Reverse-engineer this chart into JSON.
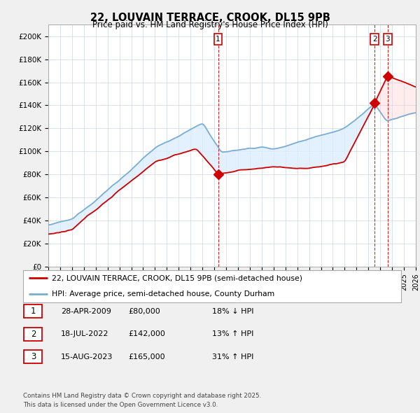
{
  "title": "22, LOUVAIN TERRACE, CROOK, DL15 9PB",
  "subtitle": "Price paid vs. HM Land Registry's House Price Index (HPI)",
  "price_color": "#cc0000",
  "hpi_color": "#7aadcf",
  "fill_color": "#ddeeff",
  "background_color": "#f0f0f0",
  "plot_bg_color": "#ffffff",
  "ylim": [
    0,
    210000
  ],
  "yticks": [
    0,
    20000,
    40000,
    60000,
    80000,
    100000,
    120000,
    140000,
    160000,
    180000,
    200000
  ],
  "ytick_labels": [
    "£0",
    "£20K",
    "£40K",
    "£60K",
    "£80K",
    "£100K",
    "£120K",
    "£140K",
    "£160K",
    "£180K",
    "£200K"
  ],
  "legend_label_price": "22, LOUVAIN TERRACE, CROOK, DL15 9PB (semi-detached house)",
  "legend_label_hpi": "HPI: Average price, semi-detached house, County Durham",
  "sale_1_date": 2009.32,
  "sale_1_price": 80000,
  "sale_2_date": 2022.54,
  "sale_2_price": 142000,
  "sale_3_date": 2023.62,
  "sale_3_price": 165000,
  "table_data": [
    [
      "1",
      "28-APR-2009",
      "£80,000",
      "18% ↓ HPI"
    ],
    [
      "2",
      "18-JUL-2022",
      "£142,000",
      "13% ↑ HPI"
    ],
    [
      "3",
      "15-AUG-2023",
      "£165,000",
      "31% ↑ HPI"
    ]
  ],
  "footer": "Contains HM Land Registry data © Crown copyright and database right 2025.\nThis data is licensed under the Open Government Licence v3.0.",
  "xmin": 1995,
  "xmax": 2026
}
